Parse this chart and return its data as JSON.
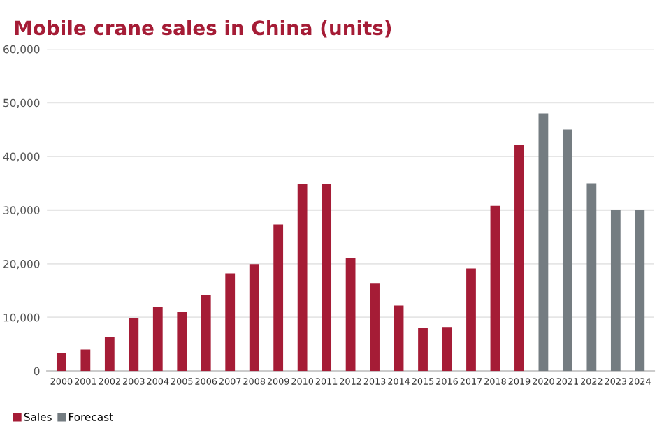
{
  "chart_data": {
    "type": "bar",
    "title": "Mobile crane sales in China (units)",
    "categories": [
      "2000",
      "2001",
      "2002",
      "2003",
      "2004",
      "2005",
      "2006",
      "2007",
      "2008",
      "2009",
      "2010",
      "2011",
      "2012",
      "2013",
      "2014",
      "2015",
      "2016",
      "2017",
      "2018",
      "2019",
      "2020",
      "2021",
      "2022",
      "2023",
      "2024"
    ],
    "series": [
      {
        "name": "Sales",
        "color": "#a51c36",
        "values": [
          3300,
          4000,
          6400,
          9900,
          11900,
          11000,
          14100,
          18200,
          19900,
          27300,
          34900,
          34900,
          21000,
          16400,
          12200,
          8100,
          8200,
          19100,
          30800,
          42200,
          null,
          null,
          null,
          null,
          null
        ]
      },
      {
        "name": "Forecast",
        "color": "#747c81",
        "values": [
          null,
          null,
          null,
          null,
          null,
          null,
          null,
          null,
          null,
          null,
          null,
          null,
          null,
          null,
          null,
          null,
          null,
          null,
          null,
          null,
          48000,
          45000,
          35000,
          30000,
          30000
        ]
      }
    ],
    "ylim": [
      0,
      60000
    ],
    "yticks": [
      {
        "value": 0,
        "label": "0"
      },
      {
        "value": 10000,
        "label": "10,000"
      },
      {
        "value": 20000,
        "label": "20,000"
      },
      {
        "value": 30000,
        "label": "30,000"
      },
      {
        "value": 40000,
        "label": "40,000"
      },
      {
        "value": 50000,
        "label": "50,000"
      },
      {
        "value": 60000,
        "label": "60,000"
      }
    ],
    "grid": "y",
    "legend": "bottom left"
  }
}
